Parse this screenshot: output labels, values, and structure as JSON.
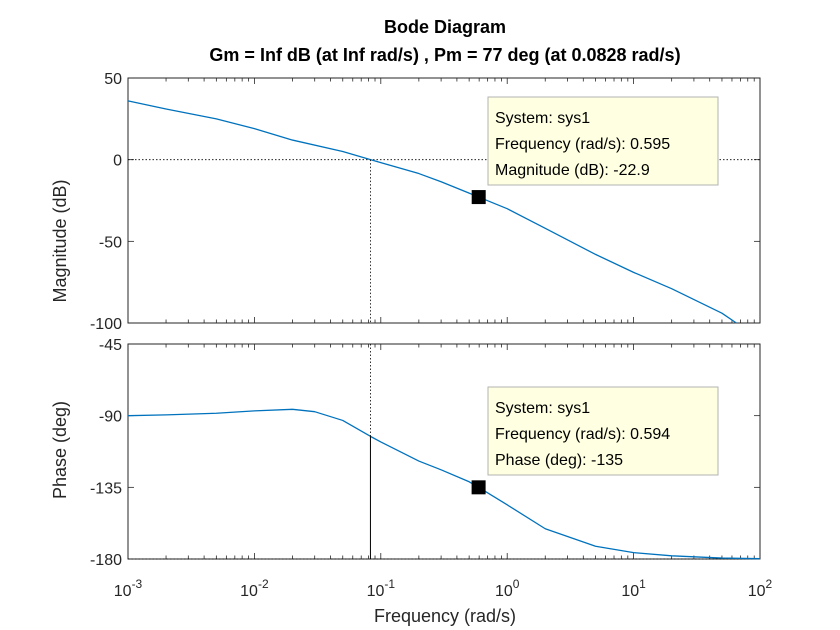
{
  "chart_data": {
    "type": "line",
    "title": "Bode Diagram",
    "subtitle": "Gm = Inf dB (at Inf rad/s) ,  Pm = 77 deg (at 0.0828 rad/s)",
    "xlabel": "Frequency  (rad/s)",
    "xscale": "log",
    "xlim": [
      0.001,
      100
    ],
    "x_tick_labels": [
      {
        "base": "10",
        "exp": "-3"
      },
      {
        "base": "10",
        "exp": "-2"
      },
      {
        "base": "10",
        "exp": "-1"
      },
      {
        "base": "10",
        "exp": "0"
      },
      {
        "base": "10",
        "exp": "1"
      },
      {
        "base": "10",
        "exp": "2"
      }
    ],
    "line_color": "#0072BD",
    "crossover_frequency": 0.0828,
    "magnitude": {
      "ylabel": "Magnitude (dB)",
      "ylim": [
        -100,
        50
      ],
      "yticks": [
        50,
        0,
        -50,
        -100
      ],
      "reference_line_y": 0,
      "x": [
        0.001,
        0.002,
        0.005,
        0.01,
        0.02,
        0.05,
        0.0828,
        0.1,
        0.2,
        0.3,
        0.5,
        0.595,
        1,
        2,
        5,
        10,
        20,
        50,
        65
      ],
      "y": [
        36,
        31,
        25,
        19,
        12,
        5,
        0,
        -1.8,
        -8.5,
        -13.5,
        -20.5,
        -22.9,
        -30,
        -42,
        -58,
        -69,
        -79,
        -94,
        -100
      ],
      "datatip": {
        "x": 0.595,
        "y": -22.9,
        "lines": [
          "System: sys1",
          "Frequency (rad/s): 0.595",
          "Magnitude (dB): -22.9"
        ]
      }
    },
    "phase": {
      "ylabel": "Phase (deg)",
      "ylim": [
        -180,
        -45
      ],
      "yticks": [
        -45,
        -90,
        -135,
        -180
      ],
      "reference_line_y": -180,
      "x": [
        0.001,
        0.002,
        0.005,
        0.01,
        0.02,
        0.03,
        0.05,
        0.0828,
        0.1,
        0.2,
        0.3,
        0.5,
        0.594,
        1,
        2,
        5,
        10,
        20,
        50,
        100
      ],
      "y": [
        -90,
        -89.5,
        -88.5,
        -87,
        -86,
        -87.5,
        -93,
        -103,
        -106.5,
        -118.5,
        -124,
        -131.5,
        -135,
        -146,
        -161,
        -172,
        -176,
        -178,
        -179.4,
        -179.8
      ],
      "datatip": {
        "x": 0.594,
        "y": -135,
        "lines": [
          "System: sys1",
          "Frequency (rad/s): 0.594",
          "Phase (deg): -135"
        ]
      }
    }
  }
}
